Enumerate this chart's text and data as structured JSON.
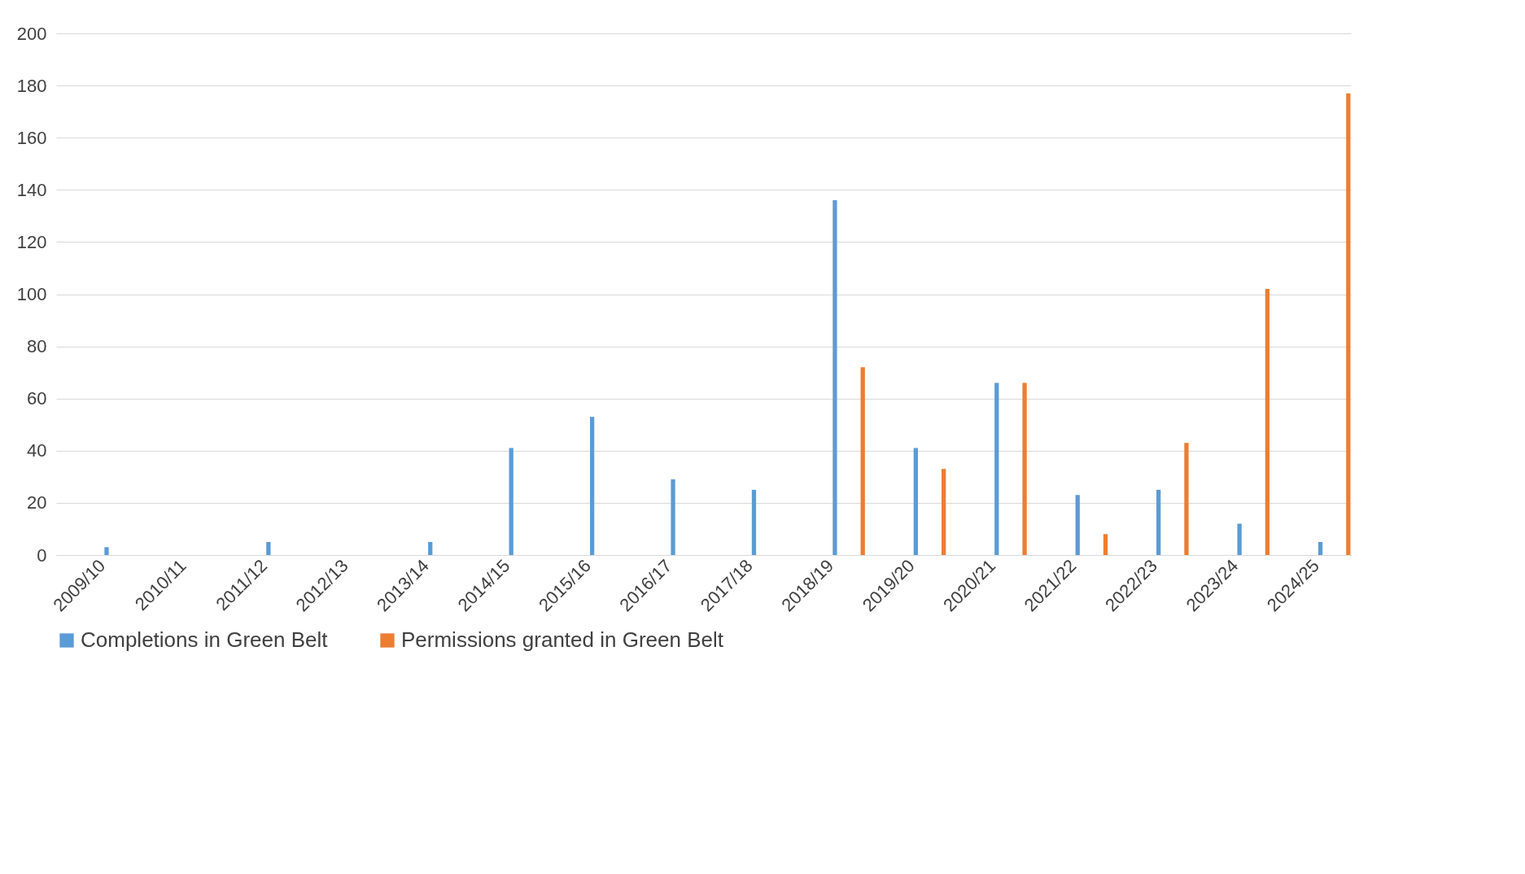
{
  "chart_data": {
    "type": "bar",
    "categories": [
      "2009/10",
      "2010/11",
      "2011/12",
      "2012/13",
      "2013/14",
      "2014/15",
      "2015/16",
      "2016/17",
      "2017/18",
      "2018/19",
      "2019/20",
      "2020/21",
      "2021/22",
      "2022/23",
      "2023/24",
      "2024/25"
    ],
    "series": [
      {
        "name": "Completions in Green Belt",
        "color": "#5b9bd5",
        "values": [
          3,
          null,
          5,
          null,
          5,
          41,
          53,
          29,
          25,
          136,
          41,
          66,
          23,
          25,
          12,
          5
        ]
      },
      {
        "name": "Permissions granted in Green Belt",
        "color": "#ed7d31",
        "values": [
          null,
          null,
          null,
          null,
          null,
          null,
          null,
          null,
          null,
          72,
          33,
          66,
          8,
          43,
          102,
          177
        ]
      }
    ],
    "ylim": [
      0,
      200
    ],
    "yticks": [
      0,
      20,
      40,
      60,
      80,
      100,
      120,
      140,
      160,
      180,
      200
    ],
    "grid": "y",
    "legend": "bottom"
  }
}
